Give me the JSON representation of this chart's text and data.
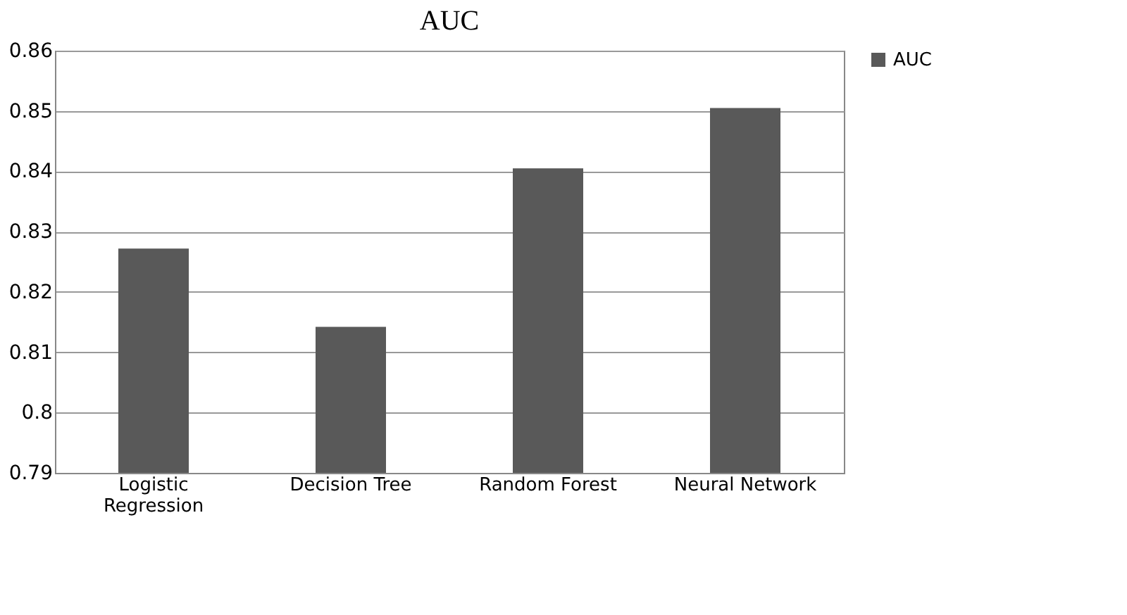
{
  "chart_data": {
    "type": "bar",
    "title": "AUC",
    "categories": [
      "Logistic Regression",
      "Decision Tree",
      "Random Forest",
      "Neural Network"
    ],
    "series": [
      {
        "name": "AUC",
        "color": "#595959",
        "values": [
          0.8272,
          0.8142,
          0.8405,
          0.8505
        ]
      }
    ],
    "ylim": [
      0.79,
      0.86
    ],
    "yticks": [
      0.79,
      0.8,
      0.81,
      0.82,
      0.83,
      0.84,
      0.85,
      0.86
    ],
    "grid": "y",
    "legend": "right"
  }
}
